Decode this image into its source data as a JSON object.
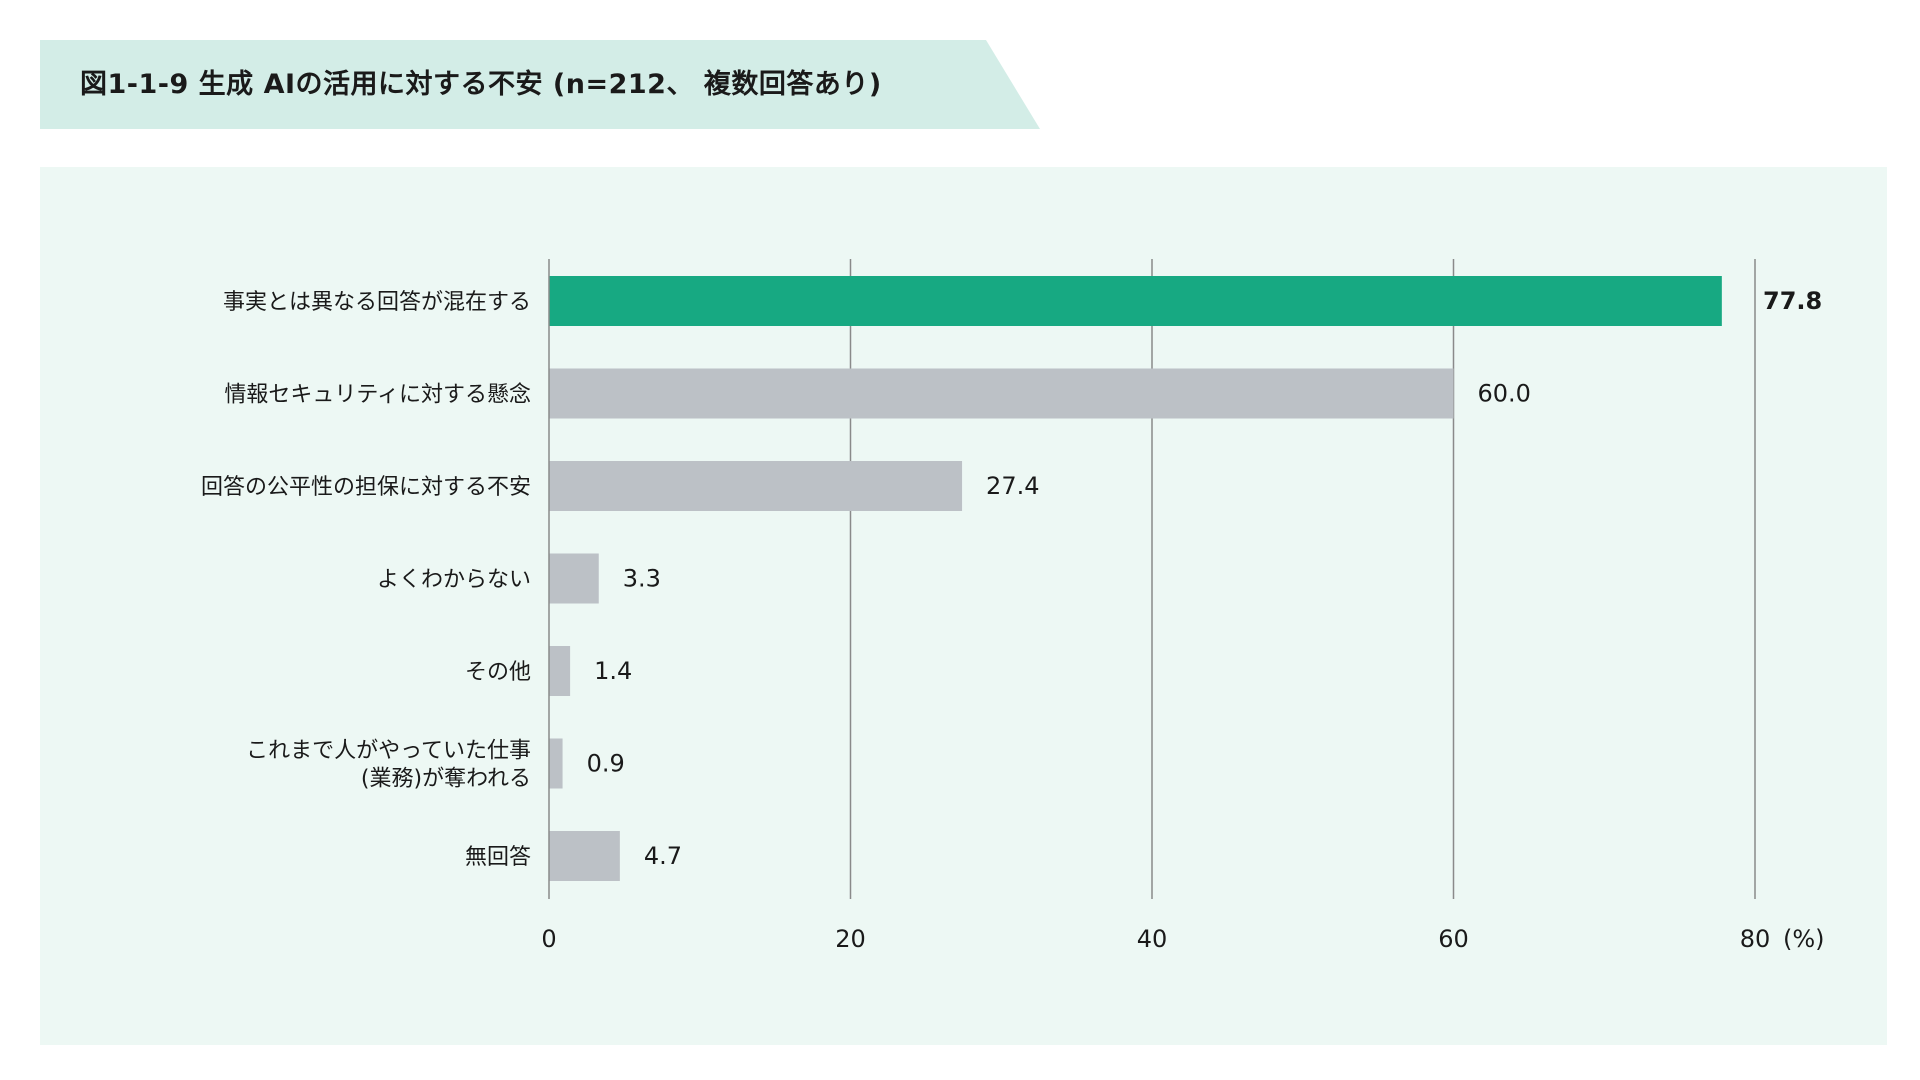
{
  "title": "図1-1-9 生成 AIの活用に対する不安 (n=212、 複数回答あり)",
  "chart_data": {
    "type": "bar",
    "orientation": "horizontal",
    "categories": [
      [
        "事実とは異なる回答が混在する"
      ],
      [
        "情報セキュリティに対する懸念"
      ],
      [
        "回答の公平性の担保に対する不安"
      ],
      [
        "よくわからない"
      ],
      [
        "その他"
      ],
      [
        "これまで人がやっていた仕事",
        "(業務)が奪われる"
      ],
      [
        "無回答"
      ]
    ],
    "values": [
      77.8,
      60.0,
      27.4,
      3.3,
      1.4,
      0.9,
      4.7
    ],
    "value_labels": [
      "77.8",
      "60.0",
      "27.4",
      "3.3",
      "1.4",
      "0.9",
      "4.7"
    ],
    "highlight_index": 0,
    "xlim": [
      0,
      80
    ],
    "xticks": [
      0,
      20,
      40,
      60,
      80
    ],
    "xtick_labels": [
      "0",
      "20",
      "40",
      "60",
      "80"
    ],
    "unit": "(%)",
    "grid": true,
    "colors": {
      "highlight": "#17a982",
      "default": "#bcc1c6",
      "grid": "#8a8a8a",
      "panel": "#edf8f4",
      "banner": "#d3ede7"
    }
  }
}
